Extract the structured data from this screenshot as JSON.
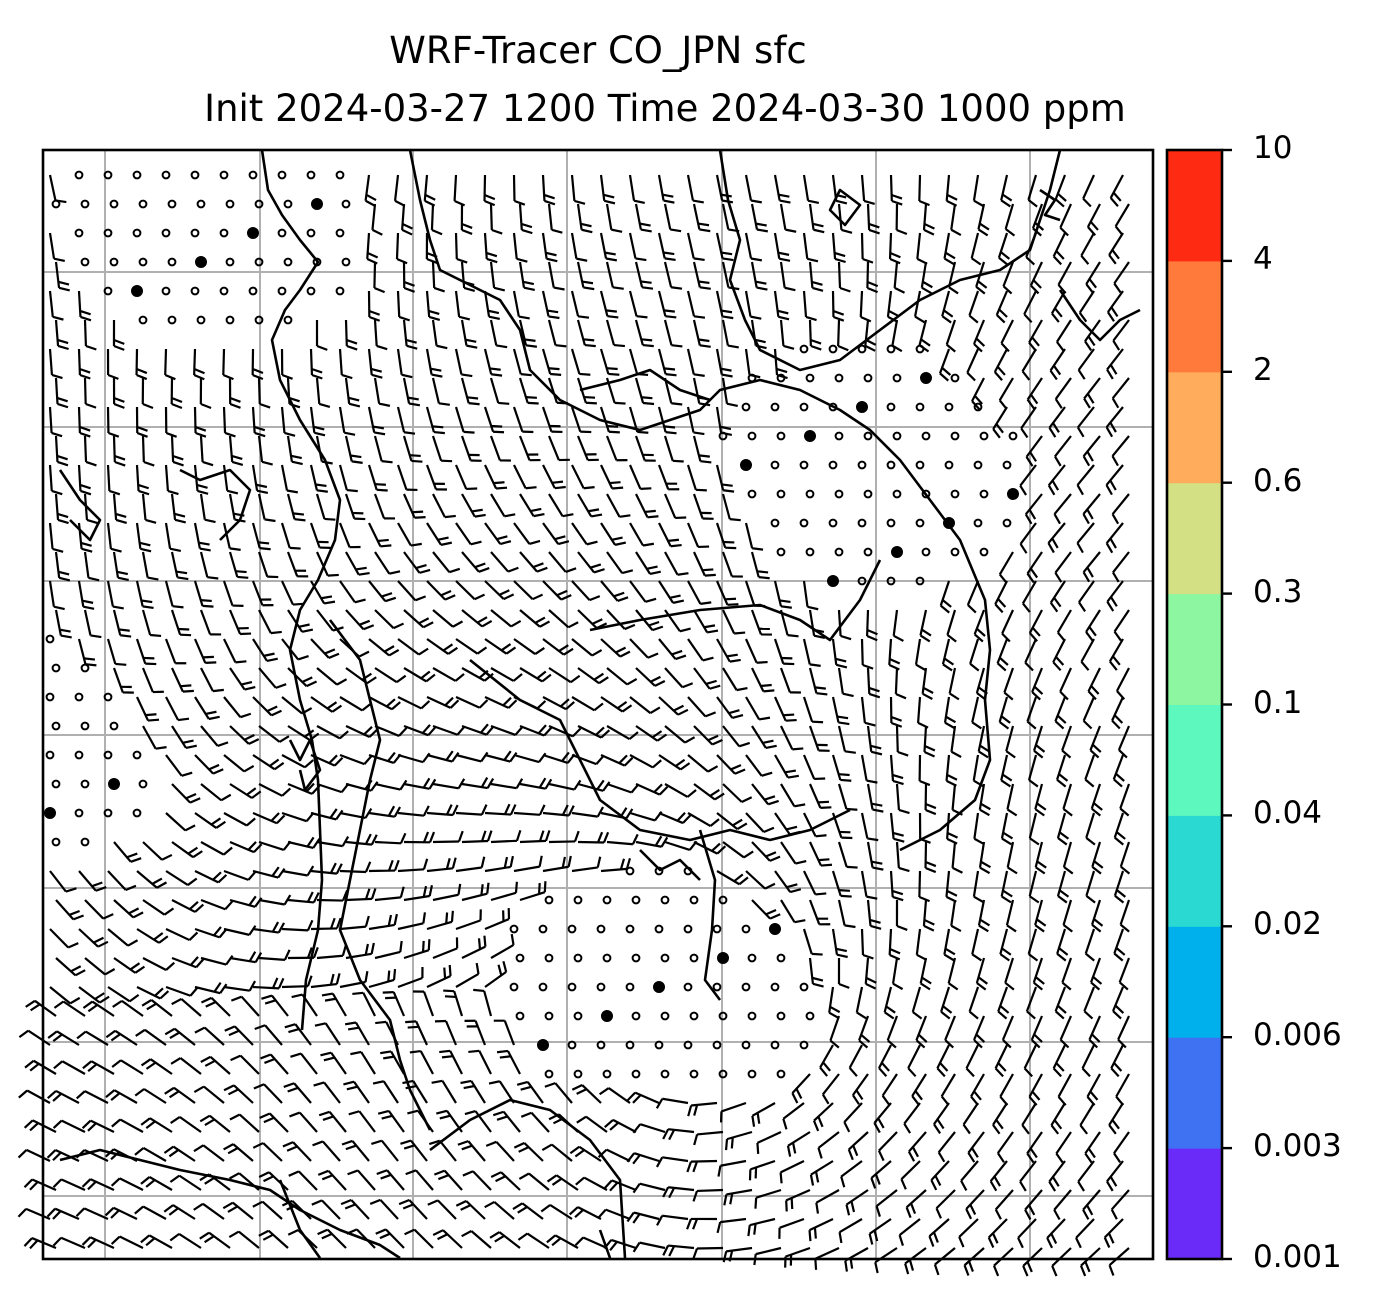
{
  "title": {
    "line1": "WRF-Tracer CO_JPN sfc",
    "line2": "Init 2024-03-27 1200 Time 2024-03-30 1000 ppm"
  },
  "colorbar": {
    "levels": [
      "0.001",
      "0.003",
      "0.006",
      "0.02",
      "0.04",
      "0.1",
      "0.3",
      "0.6",
      "2",
      "4",
      "10"
    ],
    "colors": [
      "#6a2bf9",
      "#3e72f2",
      "#00b0ec",
      "#2ad9d2",
      "#5cf8bd",
      "#8df6a0",
      "#d3e083",
      "#ffac5d",
      "#ff7a3b",
      "#ff2a12"
    ]
  },
  "map": {
    "field": "surface wind barbs",
    "gridlines": true,
    "coastlines": true,
    "background": "#ffffff"
  }
}
